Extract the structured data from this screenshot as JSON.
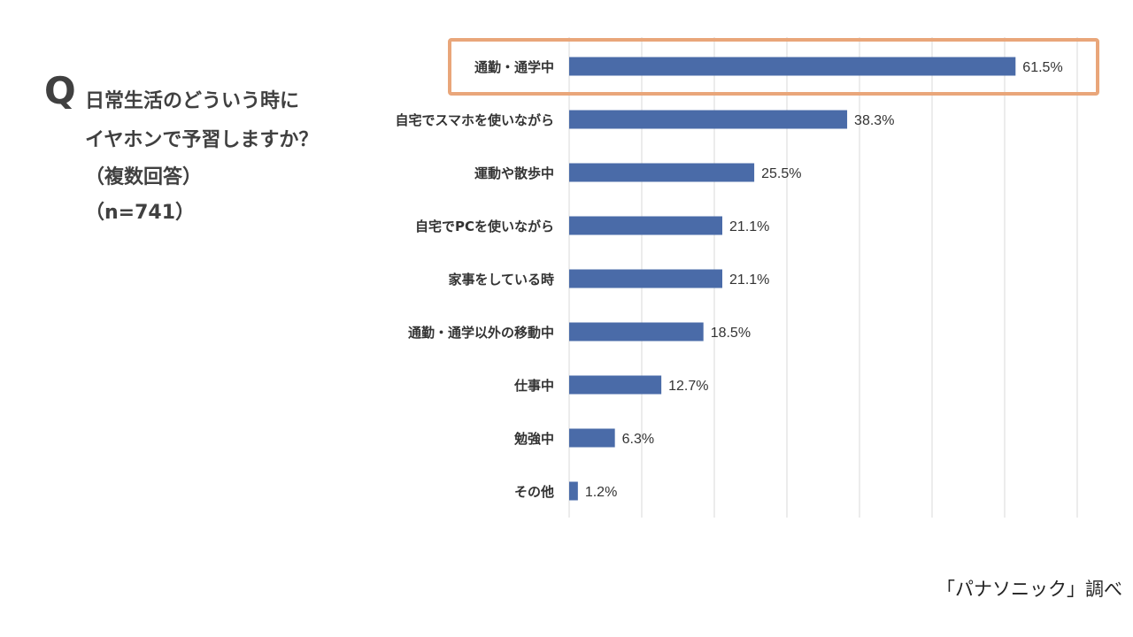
{
  "question": {
    "mark": "Q",
    "lines": [
      "日常生活のどういう時に",
      "イヤホンで予習しますか？",
      "（複数回答）",
      "（n=741）"
    ]
  },
  "source": "「パナソニック」調べ",
  "colors": {
    "bar": "#4a6ba8",
    "highlight": "#e9a67a",
    "grid": "#d9d9d9",
    "text": "#333333"
  },
  "chart_data": {
    "type": "bar",
    "orientation": "horizontal",
    "categories": [
      "通勤・通学中",
      "自宅でスマホを使いながら",
      "運動や散歩中",
      "自宅でPCを使いながら",
      "家事をしている時",
      "通勤・通学以外の移動中",
      "仕事中",
      "勉強中",
      "その他"
    ],
    "values": [
      61.5,
      38.3,
      25.5,
      21.1,
      21.1,
      18.5,
      12.7,
      6.3,
      1.2
    ],
    "data_labels": [
      "61.5%",
      "38.3%",
      "25.5%",
      "21.1%",
      "21.1%",
      "18.5%",
      "12.7%",
      "6.3%",
      "1.2%"
    ],
    "xlim": [
      0,
      70
    ],
    "grid": true,
    "highlighted_category": "通勤・通学中"
  }
}
